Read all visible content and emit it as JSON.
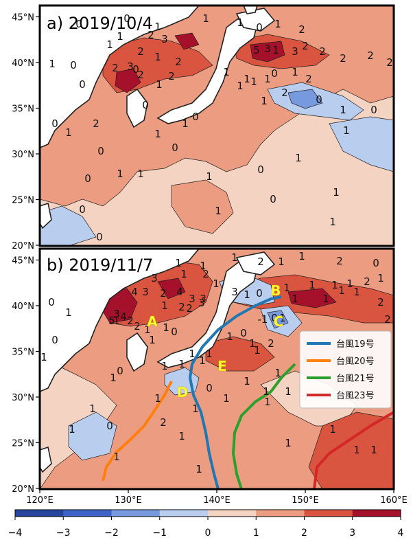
{
  "colors": {
    "c_neg4": "#27459c",
    "c_neg3": "#3d63c7",
    "c_neg2": "#7799dd",
    "c_neg1": "#b9cdee",
    "c_0": "#f4d3c2",
    "c_1": "#ec9c80",
    "c_2": "#d9553f",
    "c_3": "#a5102a",
    "land": "#ffffff",
    "typhoon19": "#1f77b4",
    "typhoon20": "#ff7f0e",
    "typhoon21": "#2ca02c",
    "typhoon23": "#d62728",
    "marker_label": "#ffff33"
  },
  "panel_a": {
    "title": "a) 2019/10/4",
    "contour_labels": [
      "0",
      "1",
      "1",
      "0",
      "1",
      "1",
      "1",
      "0",
      "1",
      "2",
      "2",
      "3",
      "2",
      "1",
      "2",
      "5",
      "3",
      "1",
      "3",
      "2",
      "2",
      "2",
      "2",
      "2",
      "1",
      "0",
      "2",
      "0",
      "2",
      "2",
      "3",
      "1",
      "0",
      "0",
      "1",
      "1",
      "1",
      "1",
      "1",
      "2",
      "0",
      "1",
      "2",
      "1",
      "0",
      "1",
      "0",
      "0",
      "1",
      "2",
      "1",
      "0",
      "1",
      "0",
      "0",
      "1",
      "0",
      "0",
      "0",
      "1",
      "1",
      "0",
      "0",
      "1",
      "1",
      "1",
      "1",
      "1"
    ]
  },
  "panel_b": {
    "title": "b) 2019/11/7",
    "contour_labels": [
      "1",
      "1",
      "1",
      "2",
      "1",
      "1",
      "2",
      "0",
      "1",
      "2",
      "3",
      "1",
      "3",
      "1",
      "4",
      "3",
      "2",
      "4",
      "3",
      "3",
      "1",
      "2",
      "2",
      "3",
      "0",
      "1",
      "3",
      "4",
      "5",
      "1",
      "2",
      "2",
      "1",
      "-1",
      "0",
      "1",
      "1",
      "1",
      "0",
      "0",
      "1",
      "1",
      "1",
      "1",
      "2",
      "1",
      "1",
      "1",
      "1",
      "1",
      "2",
      "2",
      "0",
      "1",
      "1",
      "1",
      "1",
      "1",
      "1",
      "0",
      "1",
      "1",
      "2",
      "0",
      "1",
      "1",
      "1",
      "1",
      "0",
      "2",
      "1",
      "1",
      "0",
      "1",
      "1",
      "1",
      "1",
      "1",
      "1",
      "1",
      "1",
      "1",
      "1",
      "1",
      "1",
      "1"
    ],
    "markers": [
      "A",
      "B",
      "C",
      "D",
      "E"
    ],
    "legend": [
      {
        "label": "台風19号",
        "color": "#1f77b4"
      },
      {
        "label": "台風20号",
        "color": "#ff7f0e"
      },
      {
        "label": "台風21号",
        "color": "#2ca02c"
      },
      {
        "label": "台風23号",
        "color": "#d62728"
      }
    ]
  },
  "axes": {
    "x_ticks": [
      "120°E",
      "130°E",
      "140°E",
      "150°E",
      "160°E"
    ],
    "y_ticks_a": [
      "45°N",
      "40°N",
      "35°N",
      "30°N",
      "25°N",
      "20°N"
    ],
    "y_ticks_b": [
      "45°N",
      "40°N",
      "35°N",
      "30°N",
      "25°N",
      "20°N"
    ]
  },
  "colorbar": {
    "ticks": [
      "−4",
      "−3",
      "−2",
      "−1",
      "0",
      "1",
      "2",
      "3",
      "4"
    ]
  }
}
